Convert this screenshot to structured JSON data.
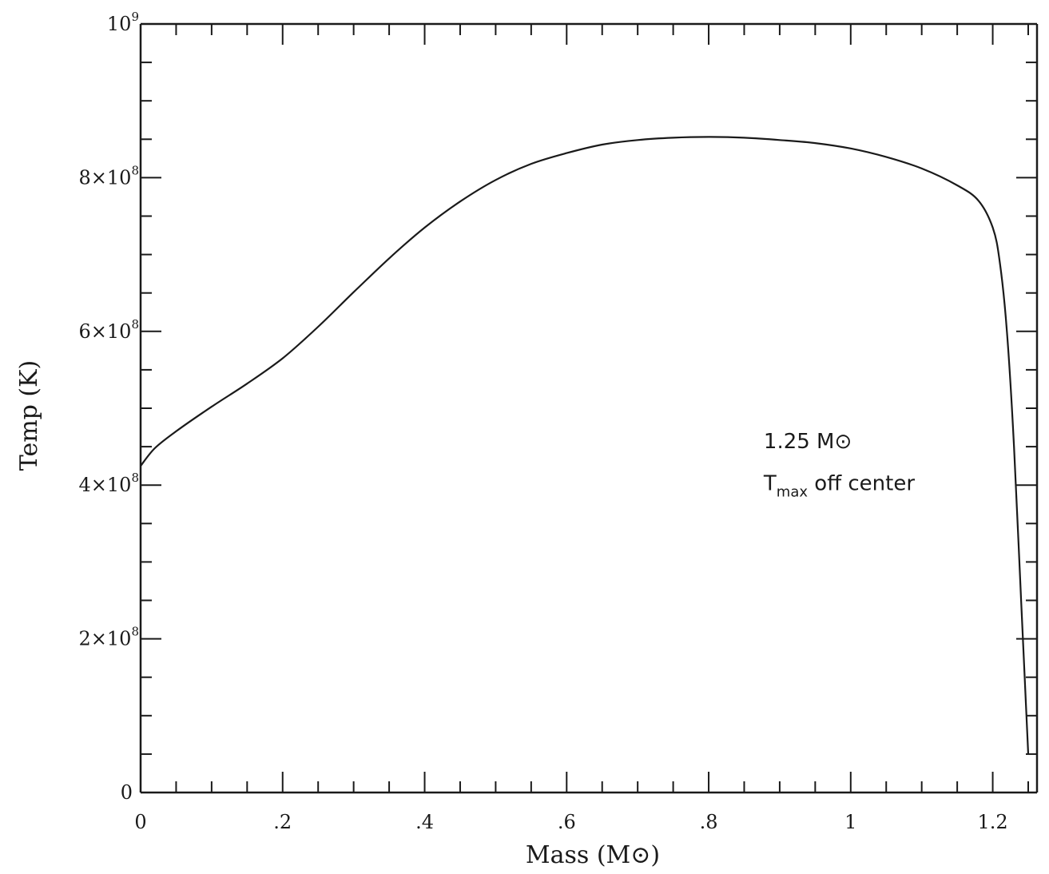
{
  "chart_data": {
    "type": "line",
    "title": "",
    "xlabel": "Mass (M⊙)",
    "ylabel": "Temp (K)",
    "xlim": [
      0,
      1.25
    ],
    "ylim": [
      0,
      1000000000
    ],
    "grid": false,
    "x_ticks": [
      {
        "value": 0,
        "label": "0"
      },
      {
        "value": 0.2,
        "label": ".2"
      },
      {
        "value": 0.4,
        "label": ".4"
      },
      {
        "value": 0.6,
        "label": ".6"
      },
      {
        "value": 0.8,
        "label": ".8"
      },
      {
        "value": 1.0,
        "label": "1"
      },
      {
        "value": 1.2,
        "label": "1.2"
      }
    ],
    "y_ticks": [
      {
        "value": 0,
        "base": "0",
        "exp": ""
      },
      {
        "value": 200000000,
        "base": "2×10",
        "exp": "8"
      },
      {
        "value": 400000000,
        "base": "4×10",
        "exp": "8"
      },
      {
        "value": 600000000,
        "base": "6×10",
        "exp": "8"
      },
      {
        "value": 800000000,
        "base": "8×10",
        "exp": "8"
      },
      {
        "value": 1000000000,
        "base": "10",
        "exp": "9"
      }
    ],
    "series": [
      {
        "x": [
          0,
          0.02,
          0.05,
          0.1,
          0.15,
          0.2,
          0.25,
          0.3,
          0.35,
          0.4,
          0.45,
          0.5,
          0.55,
          0.6,
          0.65,
          0.7,
          0.75,
          0.8,
          0.85,
          0.9,
          0.95,
          1.0,
          1.05,
          1.1,
          1.15,
          1.18,
          1.2,
          1.21,
          1.22,
          1.23,
          1.24,
          1.25
        ],
        "y": [
          425000000,
          448000000,
          470000000,
          502000000,
          532000000,
          565000000,
          606000000,
          651000000,
          695000000,
          735000000,
          769000000,
          797000000,
          818000000,
          832000000,
          843000000,
          849000000,
          852000000,
          853000000,
          852000000,
          849000000,
          845000000,
          838000000,
          827000000,
          812000000,
          790000000,
          770000000,
          735000000,
          690000000,
          600000000,
          450000000,
          250000000,
          50000000
        ]
      }
    ],
    "annotations": [
      {
        "text": "1.25 M⊙",
        "x": 0.9,
        "y": 495000000
      },
      {
        "text": "T",
        "sub": "max",
        "suffix": " off center",
        "x": 0.9,
        "y": 440000000
      }
    ]
  }
}
